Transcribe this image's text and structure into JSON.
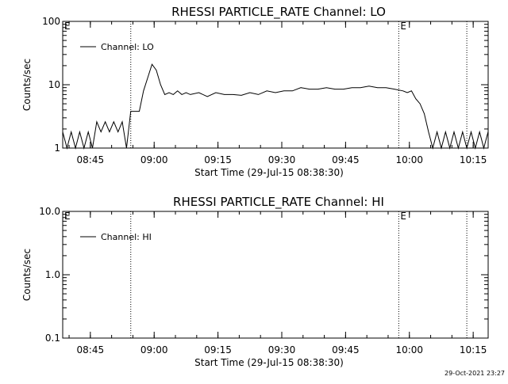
{
  "footer": {
    "timestamp": "29-Oct-2021 23:27"
  },
  "chart_data": [
    {
      "type": "line",
      "title": "RHESSI PARTICLE_RATE Channel: LO",
      "xlabel": "Start Time (29-Jul-15 08:38:30)",
      "ylabel": "Counts/sec",
      "yscale": "log",
      "ylim": [
        1,
        100
      ],
      "xlim_minutes": [
        0,
        100
      ],
      "x_tick_labels": [
        "08:45",
        "09:00",
        "09:15",
        "09:30",
        "09:45",
        "10:00",
        "10:15"
      ],
      "y_tick_labels": [
        "1",
        "10",
        "100"
      ],
      "markers": [
        {
          "label": "E",
          "position": "left edge"
        },
        {
          "label": "",
          "time": "08:54:30"
        },
        {
          "label": "E",
          "time": "09:57:30"
        },
        {
          "label": "",
          "time": "10:13:30"
        }
      ],
      "legend": {
        "entries": [
          "Channel: LO"
        ],
        "position": "top-left"
      },
      "series": [
        {
          "name": "Channel: LO",
          "x_minutes": [
            0,
            1,
            2,
            3,
            4,
            5,
            6,
            7,
            8,
            9,
            10,
            11,
            12,
            13,
            14,
            15,
            16,
            17,
            18,
            19,
            20,
            21,
            22,
            23,
            24,
            25,
            26,
            27,
            28,
            29,
            30,
            32,
            34,
            36,
            38,
            40,
            42,
            44,
            46,
            48,
            50,
            52,
            54,
            56,
            58,
            60,
            62,
            64,
            66,
            68,
            70,
            72,
            74,
            76,
            78,
            80,
            81,
            82,
            83,
            84,
            85,
            86,
            87,
            88,
            89,
            90,
            91,
            92,
            93,
            94,
            95,
            96,
            97,
            98,
            99,
            100
          ],
          "y": [
            1.8,
            1,
            1.8,
            1,
            1.8,
            1,
            1.8,
            1,
            2.6,
            1.8,
            2.6,
            1.8,
            2.6,
            1.8,
            2.6,
            1,
            3.8,
            3.8,
            3.8,
            8,
            13,
            21,
            17,
            10,
            7,
            7.5,
            7,
            8,
            7,
            7.5,
            7,
            7.5,
            6.5,
            7.5,
            7,
            7,
            6.8,
            7.5,
            7,
            8,
            7.5,
            8,
            8,
            9,
            8.5,
            8.5,
            9,
            8.5,
            8.5,
            9,
            9,
            9.5,
            9,
            9,
            8.5,
            8,
            7.5,
            8,
            6,
            5,
            3.5,
            1.8,
            1,
            1.8,
            1,
            1.8,
            1,
            1.8,
            1,
            1.8,
            1,
            1.8,
            1,
            1.8,
            1,
            1.8
          ]
        }
      ]
    },
    {
      "type": "line",
      "title": "RHESSI PARTICLE_RATE Channel: HI",
      "xlabel": "Start Time (29-Jul-15 08:38:30)",
      "ylabel": "Counts/sec",
      "yscale": "log",
      "ylim": [
        0.1,
        10
      ],
      "xlim_minutes": [
        0,
        100
      ],
      "x_tick_labels": [
        "08:45",
        "09:00",
        "09:15",
        "09:30",
        "09:45",
        "10:00",
        "10:15"
      ],
      "y_tick_labels": [
        "0.1",
        "1.0",
        "10.0"
      ],
      "markers": [
        {
          "label": "E",
          "position": "left edge"
        },
        {
          "label": "",
          "time": "08:54:30"
        },
        {
          "label": "E",
          "time": "09:57:30"
        },
        {
          "label": "",
          "time": "10:13:30"
        }
      ],
      "legend": {
        "entries": [
          "Channel: HI"
        ],
        "position": "top-left"
      },
      "series": [
        {
          "name": "Channel: HI",
          "x_minutes": [],
          "y": []
        }
      ]
    }
  ]
}
